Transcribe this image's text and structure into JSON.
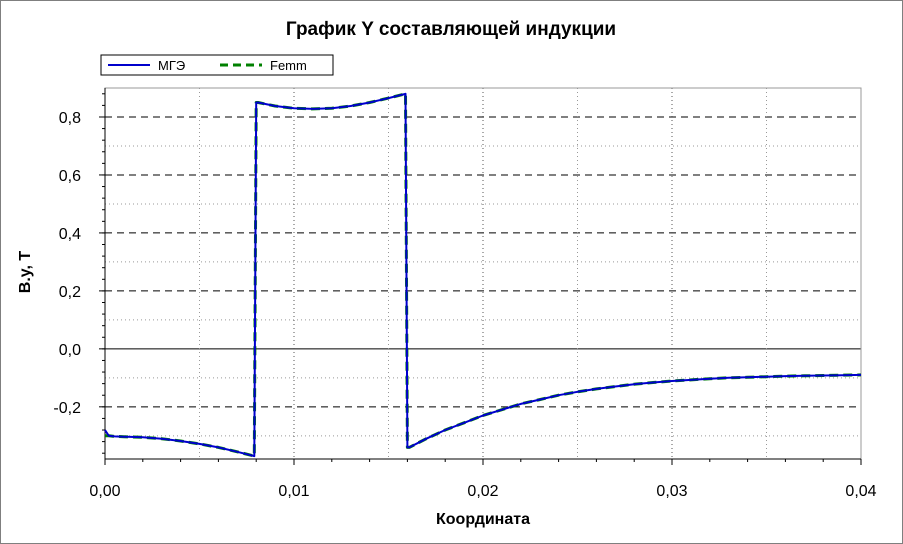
{
  "chart_data": {
    "type": "line",
    "title": "График Y составляющей индукции",
    "xlabel": "Координата",
    "ylabel": "B.y, T",
    "xlim": [
      0.0,
      0.04
    ],
    "ylim": [
      -0.38,
      0.9
    ],
    "x_ticks": [
      {
        "value": 0.0,
        "label": "0,00"
      },
      {
        "value": 0.01,
        "label": "0,01"
      },
      {
        "value": 0.02,
        "label": "0,02"
      },
      {
        "value": 0.03,
        "label": "0,03"
      },
      {
        "value": 0.04,
        "label": "0,04"
      }
    ],
    "y_ticks": [
      {
        "value": -0.2,
        "label": "-0,2"
      },
      {
        "value": 0.0,
        "label": "0,0"
      },
      {
        "value": 0.2,
        "label": "0,2"
      },
      {
        "value": 0.4,
        "label": "0,4"
      },
      {
        "value": 0.6,
        "label": "0,6"
      },
      {
        "value": 0.8,
        "label": "0,8"
      }
    ],
    "grid": true,
    "legend_position": "top-left",
    "series": [
      {
        "name": "МГЭ",
        "color": "#0000cc",
        "style": "solid",
        "x": [
          0.0,
          0.0002,
          0.0005,
          0.001,
          0.002,
          0.003,
          0.004,
          0.005,
          0.006,
          0.007,
          0.0079,
          0.008,
          0.0081,
          0.009,
          0.01,
          0.011,
          0.012,
          0.013,
          0.014,
          0.015,
          0.0159,
          0.016,
          0.0161,
          0.017,
          0.018,
          0.019,
          0.02,
          0.021,
          0.022,
          0.023,
          0.024,
          0.025,
          0.026,
          0.027,
          0.028,
          0.029,
          0.03,
          0.031,
          0.032,
          0.033,
          0.034,
          0.035,
          0.036,
          0.037,
          0.038,
          0.039,
          0.04
        ],
        "y": [
          -0.28,
          -0.3,
          -0.302,
          -0.303,
          -0.305,
          -0.31,
          -0.318,
          -0.328,
          -0.34,
          -0.355,
          -0.37,
          0.85,
          0.85,
          0.838,
          0.83,
          0.828,
          0.83,
          0.838,
          0.85,
          0.865,
          0.88,
          -0.34,
          -0.34,
          -0.31,
          -0.28,
          -0.255,
          -0.23,
          -0.21,
          -0.19,
          -0.175,
          -0.16,
          -0.148,
          -0.138,
          -0.13,
          -0.122,
          -0.116,
          -0.111,
          -0.107,
          -0.103,
          -0.1,
          -0.098,
          -0.096,
          -0.094,
          -0.093,
          -0.092,
          -0.091,
          -0.09
        ]
      },
      {
        "name": "Femm",
        "color": "#008000",
        "style": "dashed",
        "x": [
          0.0,
          0.0002,
          0.0005,
          0.001,
          0.002,
          0.003,
          0.004,
          0.005,
          0.006,
          0.007,
          0.0079,
          0.008,
          0.0081,
          0.009,
          0.01,
          0.011,
          0.012,
          0.013,
          0.014,
          0.015,
          0.0159,
          0.016,
          0.0161,
          0.017,
          0.018,
          0.019,
          0.02,
          0.021,
          0.022,
          0.023,
          0.024,
          0.025,
          0.026,
          0.027,
          0.028,
          0.029,
          0.03,
          0.031,
          0.032,
          0.033,
          0.034,
          0.035,
          0.036,
          0.037,
          0.038,
          0.039,
          0.04
        ],
        "y": [
          -0.3,
          -0.3,
          -0.302,
          -0.303,
          -0.305,
          -0.31,
          -0.318,
          -0.328,
          -0.34,
          -0.355,
          -0.37,
          0.85,
          0.85,
          0.838,
          0.83,
          0.828,
          0.83,
          0.838,
          0.85,
          0.865,
          0.88,
          -0.34,
          -0.34,
          -0.31,
          -0.28,
          -0.255,
          -0.23,
          -0.21,
          -0.19,
          -0.175,
          -0.16,
          -0.148,
          -0.138,
          -0.13,
          -0.122,
          -0.116,
          -0.111,
          -0.107,
          -0.103,
          -0.1,
          -0.098,
          -0.096,
          -0.094,
          -0.093,
          -0.092,
          -0.091,
          -0.09
        ]
      }
    ]
  }
}
